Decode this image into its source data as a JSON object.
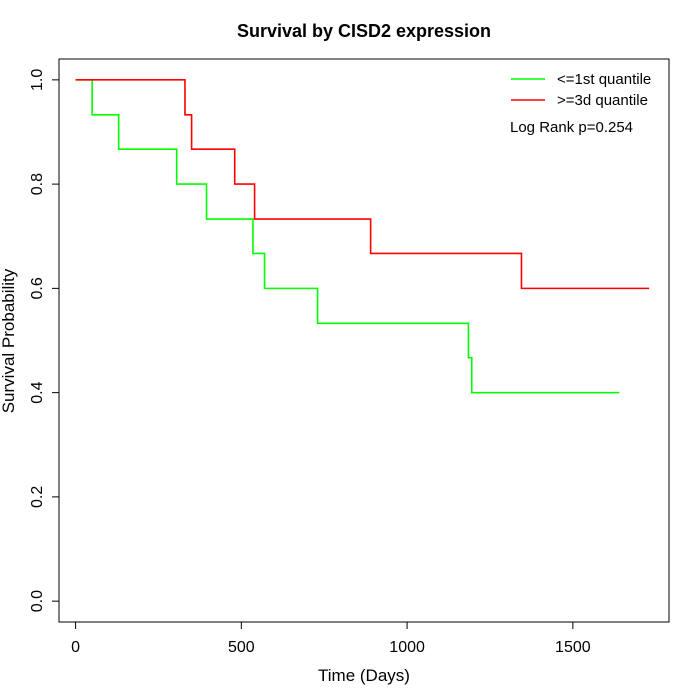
{
  "chart_data": {
    "type": "line",
    "subtype": "kaplan-meier-step",
    "title": "Survival by CISD2 expression",
    "xlabel": "Time (Days)",
    "ylabel": "Survival Probability",
    "xlim": [
      -50,
      1790
    ],
    "ylim": [
      -0.04,
      1.04
    ],
    "x_ticks": [
      0,
      500,
      1000,
      1500
    ],
    "y_ticks": [
      0.0,
      0.2,
      0.4,
      0.6,
      0.8,
      1.0
    ],
    "x_tick_labels": [
      "0",
      "500",
      "1000",
      "1500"
    ],
    "y_tick_labels": [
      "0.0",
      "0.2",
      "0.4",
      "0.6",
      "0.8",
      "1.0"
    ],
    "grid": false,
    "legend_position": "top-right",
    "annotation": "Log Rank p=0.254",
    "series": [
      {
        "name": "<=1st quantile",
        "color": "#00ff00",
        "x": [
          0,
          50,
          130,
          305,
          395,
          535,
          570,
          730,
          1185,
          1195,
          1640
        ],
        "y": [
          1.0,
          0.933,
          0.867,
          0.8,
          0.733,
          0.667,
          0.6,
          0.533,
          0.467,
          0.4,
          0.4
        ]
      },
      {
        "name": ">=3d quantile",
        "color": "#ff0000",
        "x": [
          0,
          330,
          350,
          480,
          540,
          890,
          1345,
          1730
        ],
        "y": [
          1.0,
          0.933,
          0.867,
          0.8,
          0.733,
          0.667,
          0.6,
          0.6
        ]
      }
    ]
  }
}
